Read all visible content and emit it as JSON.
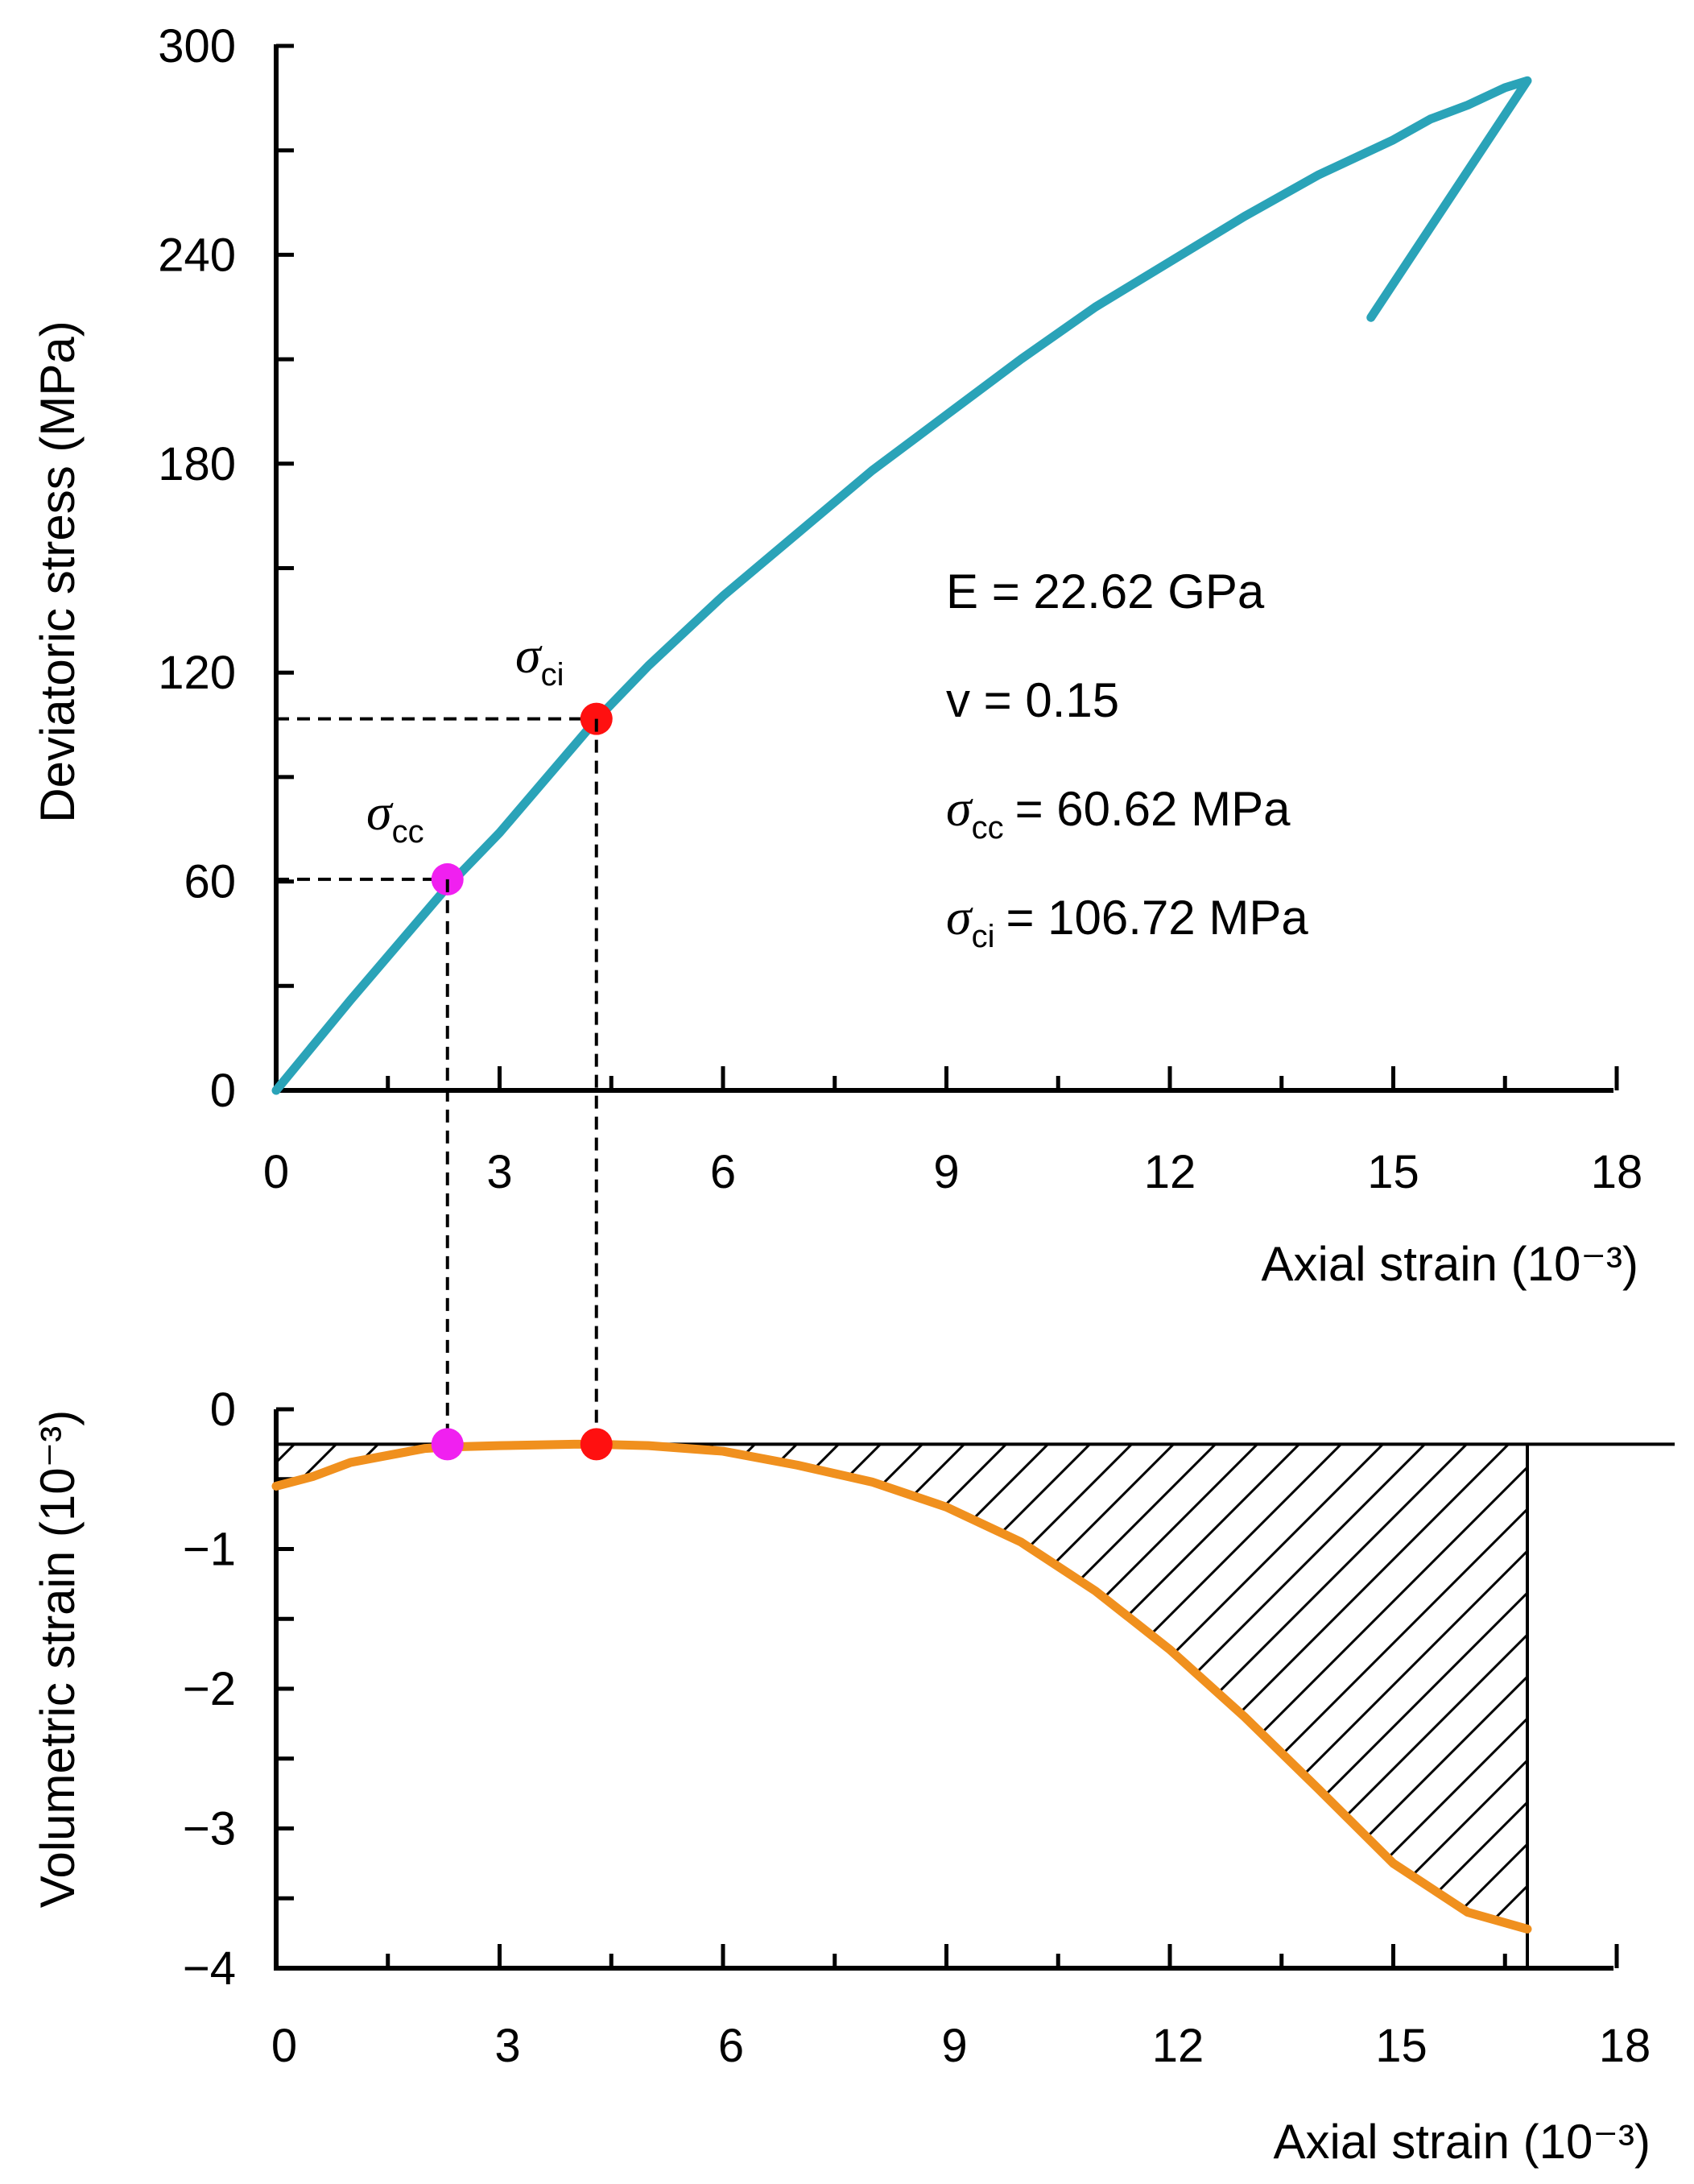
{
  "chart_data": [
    {
      "type": "line",
      "title": "",
      "xlabel": "Axial strain (10⁻³)",
      "ylabel": "Deviatoric stress (MPa)",
      "xlim": [
        0,
        18
      ],
      "ylim": [
        0,
        300
      ],
      "x_ticks": [
        "0",
        "3",
        "6",
        "9",
        "12",
        "15",
        "18"
      ],
      "y_ticks": [
        "0",
        "60",
        "120",
        "180",
        "240",
        "300"
      ],
      "series": [
        {
          "color": "#2aa3b8",
          "x": [
            0,
            1,
            2,
            2.3,
            3,
            4,
            4.3,
            5,
            6,
            7,
            8,
            9,
            10,
            11,
            12,
            13,
            14,
            15,
            15.5,
            16,
            16.5,
            16.8,
            14.7
          ],
          "y": [
            0,
            26,
            51,
            58.5,
            74,
            99,
            106.5,
            122,
            142,
            160,
            178,
            194,
            210,
            225,
            238,
            251,
            263,
            273,
            279,
            283,
            288,
            290,
            222
          ]
        }
      ],
      "points": [
        {
          "name": "σcc",
          "x": 2.3,
          "y": 60.62,
          "color": "#f020f0"
        },
        {
          "name": "σci",
          "x": 4.3,
          "y": 106.72,
          "color": "#ff1010"
        }
      ],
      "annotations": {
        "sigma_symbol": "σ",
        "cc_sub": "cc",
        "ci_sub": "ci",
        "E_text": "E = 22.62 GPa",
        "v_text": "v = 0.15",
        "scc_value": "= 60.62 MPa",
        "sci_value": "= 106.72 MPa"
      },
      "grid": false
    },
    {
      "type": "line",
      "title": "",
      "xlabel": "Axial strain (10⁻³)",
      "ylabel": "Volumetric strain (10⁻³)",
      "xlim": [
        0,
        18
      ],
      "ylim": [
        -4,
        0
      ],
      "x_ticks": [
        "0",
        "3",
        "6",
        "9",
        "12",
        "15",
        "18"
      ],
      "y_ticks": [
        "0",
        "−1",
        "−2",
        "−3",
        "−4"
      ],
      "reference_line_y": -0.25,
      "hatched_region": "between reference line and curve from x = 0 to x = 16.8",
      "series": [
        {
          "color": "#f0901e",
          "x": [
            0,
            0.5,
            1,
            2,
            2.3,
            3,
            4,
            4.3,
            5,
            6,
            7,
            8,
            9,
            10,
            11,
            12,
            13,
            14,
            15,
            16,
            16.8
          ],
          "y": [
            -0.55,
            -0.48,
            -0.38,
            -0.28,
            -0.27,
            -0.26,
            -0.25,
            -0.25,
            -0.26,
            -0.3,
            -0.4,
            -0.52,
            -0.7,
            -0.95,
            -1.3,
            -1.72,
            -2.2,
            -2.72,
            -3.25,
            -3.6,
            -3.72
          ]
        }
      ],
      "points": [
        {
          "name": "σcc",
          "x": 2.3,
          "y": -0.25,
          "color": "#f020f0"
        },
        {
          "name": "σci",
          "x": 4.3,
          "y": -0.25,
          "color": "#ff1010"
        }
      ],
      "grid": false
    }
  ]
}
